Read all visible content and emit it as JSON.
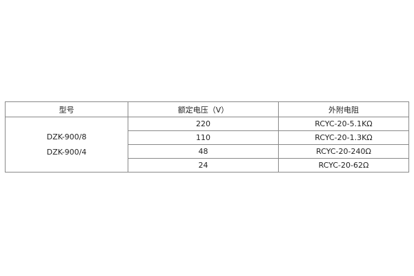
{
  "headers": [
    "型号",
    "额定电压（V）",
    "外附电阻"
  ],
  "models": [
    "DZK-900/8",
    "DZK-900/4"
  ],
  "rows": [
    {
      "voltage": "220",
      "resistor": "RCYC-20-5.1KΩ"
    },
    {
      "voltage": "110",
      "resistor": "RCYC-20-1.3KΩ"
    },
    {
      "voltage": "48",
      "resistor": "RCYC-20-240Ω"
    },
    {
      "voltage": "24",
      "resistor": "RCYC-20-62Ω"
    }
  ]
}
